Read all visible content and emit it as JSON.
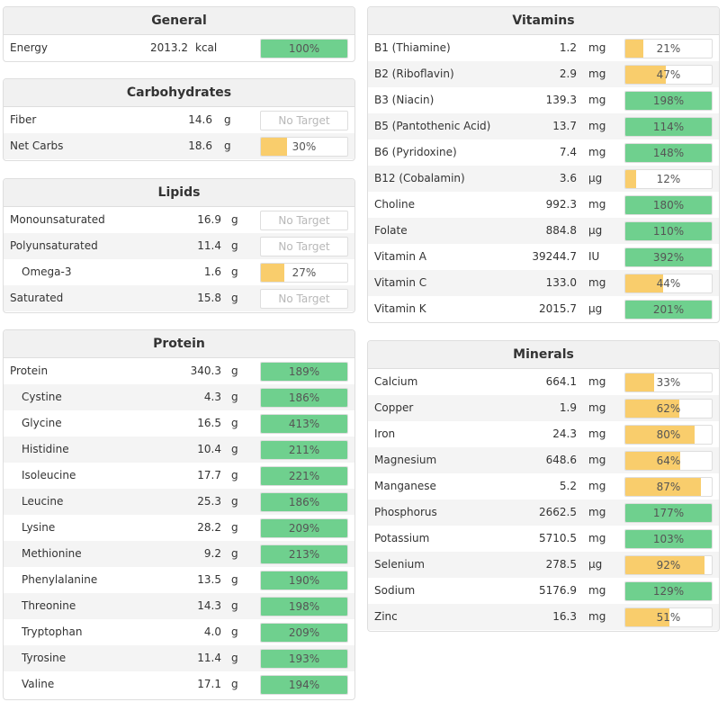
{
  "general": {
    "title": "General",
    "rows": [
      {
        "name": "Energy",
        "amount": "2013.2",
        "unit": "kcal",
        "pct_label": "100%",
        "pct": 100,
        "color": "green"
      }
    ]
  },
  "carbohydrates": {
    "title": "Carbohydrates",
    "rows": [
      {
        "name": "Fiber",
        "amount": "14.6",
        "unit": "g",
        "pct_label": "No Target",
        "pct": null,
        "color": "none"
      },
      {
        "name": "Net Carbs",
        "amount": "18.6",
        "unit": "g",
        "pct_label": "30%",
        "pct": 30,
        "color": "yellow"
      }
    ]
  },
  "lipids": {
    "title": "Lipids",
    "rows": [
      {
        "name": "Monounsaturated",
        "amount": "16.9",
        "unit": "g",
        "pct_label": "No Target",
        "pct": null,
        "color": "none"
      },
      {
        "name": "Polyunsaturated",
        "amount": "11.4",
        "unit": "g",
        "pct_label": "No Target",
        "pct": null,
        "color": "none"
      },
      {
        "name": "Omega-3",
        "amount": "1.6",
        "unit": "g",
        "pct_label": "27%",
        "pct": 27,
        "color": "yellow",
        "sub": true
      },
      {
        "name": "Saturated",
        "amount": "15.8",
        "unit": "g",
        "pct_label": "No Target",
        "pct": null,
        "color": "none"
      }
    ]
  },
  "protein": {
    "title": "Protein",
    "rows": [
      {
        "name": "Protein",
        "amount": "340.3",
        "unit": "g",
        "pct_label": "189%",
        "pct": 189,
        "color": "green"
      },
      {
        "name": "Cystine",
        "amount": "4.3",
        "unit": "g",
        "pct_label": "186%",
        "pct": 186,
        "color": "green",
        "sub": true
      },
      {
        "name": "Glycine",
        "amount": "16.5",
        "unit": "g",
        "pct_label": "413%",
        "pct": 413,
        "color": "green",
        "sub": true
      },
      {
        "name": "Histidine",
        "amount": "10.4",
        "unit": "g",
        "pct_label": "211%",
        "pct": 211,
        "color": "green",
        "sub": true
      },
      {
        "name": "Isoleucine",
        "amount": "17.7",
        "unit": "g",
        "pct_label": "221%",
        "pct": 221,
        "color": "green",
        "sub": true
      },
      {
        "name": "Leucine",
        "amount": "25.3",
        "unit": "g",
        "pct_label": "186%",
        "pct": 186,
        "color": "green",
        "sub": true
      },
      {
        "name": "Lysine",
        "amount": "28.2",
        "unit": "g",
        "pct_label": "209%",
        "pct": 209,
        "color": "green",
        "sub": true
      },
      {
        "name": "Methionine",
        "amount": "9.2",
        "unit": "g",
        "pct_label": "213%",
        "pct": 213,
        "color": "green",
        "sub": true
      },
      {
        "name": "Phenylalanine",
        "amount": "13.5",
        "unit": "g",
        "pct_label": "190%",
        "pct": 190,
        "color": "green",
        "sub": true
      },
      {
        "name": "Threonine",
        "amount": "14.3",
        "unit": "g",
        "pct_label": "198%",
        "pct": 198,
        "color": "green",
        "sub": true
      },
      {
        "name": "Tryptophan",
        "amount": "4.0",
        "unit": "g",
        "pct_label": "209%",
        "pct": 209,
        "color": "green",
        "sub": true
      },
      {
        "name": "Tyrosine",
        "amount": "11.4",
        "unit": "g",
        "pct_label": "193%",
        "pct": 193,
        "color": "green",
        "sub": true
      },
      {
        "name": "Valine",
        "amount": "17.1",
        "unit": "g",
        "pct_label": "194%",
        "pct": 194,
        "color": "green",
        "sub": true
      }
    ]
  },
  "vitamins": {
    "title": "Vitamins",
    "rows": [
      {
        "name": "B1 (Thiamine)",
        "amount": "1.2",
        "unit": "mg",
        "pct_label": "21%",
        "pct": 21,
        "color": "yellow"
      },
      {
        "name": "B2 (Riboflavin)",
        "amount": "2.9",
        "unit": "mg",
        "pct_label": "47%",
        "pct": 47,
        "color": "yellow"
      },
      {
        "name": "B3 (Niacin)",
        "amount": "139.3",
        "unit": "mg",
        "pct_label": "198%",
        "pct": 198,
        "color": "green"
      },
      {
        "name": "B5 (Pantothenic Acid)",
        "amount": "13.7",
        "unit": "mg",
        "pct_label": "114%",
        "pct": 114,
        "color": "green"
      },
      {
        "name": "B6 (Pyridoxine)",
        "amount": "7.4",
        "unit": "mg",
        "pct_label": "148%",
        "pct": 148,
        "color": "green"
      },
      {
        "name": "B12 (Cobalamin)",
        "amount": "3.6",
        "unit": "µg",
        "pct_label": "12%",
        "pct": 12,
        "color": "yellow"
      },
      {
        "name": "Choline",
        "amount": "992.3",
        "unit": "mg",
        "pct_label": "180%",
        "pct": 180,
        "color": "green"
      },
      {
        "name": "Folate",
        "amount": "884.8",
        "unit": "µg",
        "pct_label": "110%",
        "pct": 110,
        "color": "green"
      },
      {
        "name": "Vitamin A",
        "amount": "39244.7",
        "unit": "IU",
        "pct_label": "392%",
        "pct": 392,
        "color": "green"
      },
      {
        "name": "Vitamin C",
        "amount": "133.0",
        "unit": "mg",
        "pct_label": "44%",
        "pct": 44,
        "color": "yellow"
      },
      {
        "name": "Vitamin K",
        "amount": "2015.7",
        "unit": "µg",
        "pct_label": "201%",
        "pct": 201,
        "color": "green"
      }
    ]
  },
  "minerals": {
    "title": "Minerals",
    "rows": [
      {
        "name": "Calcium",
        "amount": "664.1",
        "unit": "mg",
        "pct_label": "33%",
        "pct": 33,
        "color": "yellow"
      },
      {
        "name": "Copper",
        "amount": "1.9",
        "unit": "mg",
        "pct_label": "62%",
        "pct": 62,
        "color": "yellow"
      },
      {
        "name": "Iron",
        "amount": "24.3",
        "unit": "mg",
        "pct_label": "80%",
        "pct": 80,
        "color": "yellow"
      },
      {
        "name": "Magnesium",
        "amount": "648.6",
        "unit": "mg",
        "pct_label": "64%",
        "pct": 64,
        "color": "yellow"
      },
      {
        "name": "Manganese",
        "amount": "5.2",
        "unit": "mg",
        "pct_label": "87%",
        "pct": 87,
        "color": "yellow"
      },
      {
        "name": "Phosphorus",
        "amount": "2662.5",
        "unit": "mg",
        "pct_label": "177%",
        "pct": 177,
        "color": "green"
      },
      {
        "name": "Potassium",
        "amount": "5710.5",
        "unit": "mg",
        "pct_label": "103%",
        "pct": 103,
        "color": "green"
      },
      {
        "name": "Selenium",
        "amount": "278.5",
        "unit": "µg",
        "pct_label": "92%",
        "pct": 92,
        "color": "yellow"
      },
      {
        "name": "Sodium",
        "amount": "5176.9",
        "unit": "mg",
        "pct_label": "129%",
        "pct": 129,
        "color": "green"
      },
      {
        "name": "Zinc",
        "amount": "16.3",
        "unit": "mg",
        "pct_label": "51%",
        "pct": 51,
        "color": "yellow"
      }
    ]
  },
  "colors": {
    "green": "#6fd08e",
    "yellow": "#f9cd6c",
    "none_text": "#b8b8b8"
  }
}
